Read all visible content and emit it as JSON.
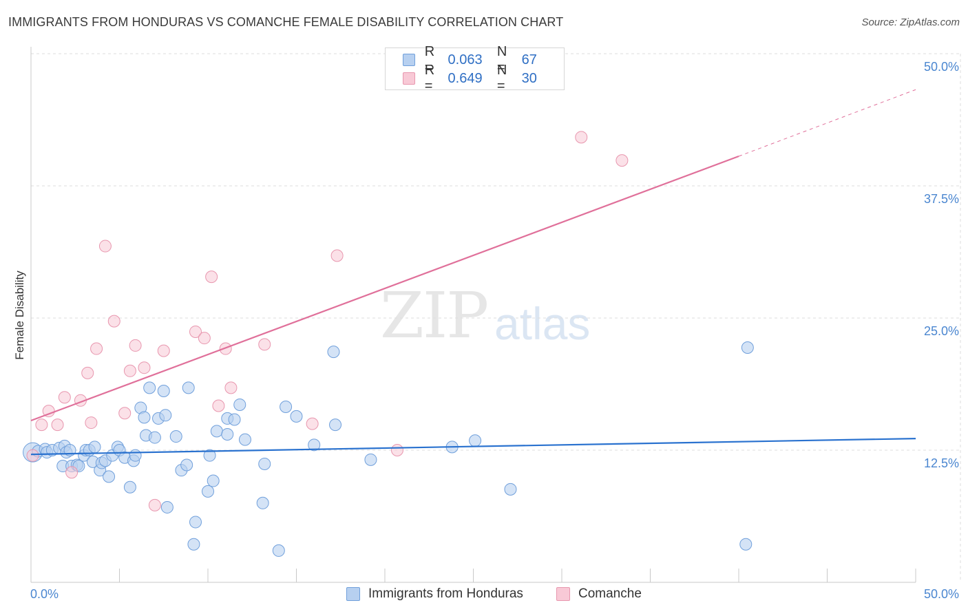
{
  "header": {
    "title": "IMMIGRANTS FROM HONDURAS VS COMANCHE FEMALE DISABILITY CORRELATION CHART",
    "source": "Source: ZipAtlas.com"
  },
  "watermark": {
    "zip": "ZIP",
    "atlas": "atlas"
  },
  "colors": {
    "blue_fill": "#b7d0f0",
    "blue_stroke": "#6f9fdb",
    "blue_line": "#2a72cf",
    "pink_fill": "#f8c9d6",
    "pink_stroke": "#e896ae",
    "pink_line": "#e0709a",
    "tick_text": "#4a86d0",
    "grid": "#dddddd"
  },
  "legend": {
    "series": [
      {
        "r_label": "R =",
        "r_value": "0.063",
        "n_label": "N =",
        "n_value": "67"
      },
      {
        "r_label": "R =",
        "r_value": "0.649",
        "n_label": "N =",
        "n_value": "30"
      }
    ]
  },
  "bottom_legend": {
    "items": [
      "Immigrants from Honduras",
      "Comanche"
    ]
  },
  "chart_data": {
    "type": "scatter",
    "title": "IMMIGRANTS FROM HONDURAS VS COMANCHE FEMALE DISABILITY CORRELATION CHART",
    "xlabel": "",
    "ylabel": "Female Disability",
    "xlim": [
      0,
      50
    ],
    "ylim": [
      0,
      50
    ],
    "y_ticks": [
      12.5,
      25.0,
      37.5,
      50.0
    ],
    "y_tick_labels": [
      "12.5%",
      "25.0%",
      "37.5%",
      "50.0%"
    ],
    "x_tick_labels": [
      "0.0%",
      "50.0%"
    ],
    "grid": true,
    "legend_position": "top-center",
    "series": [
      {
        "name": "Immigrants from Honduras",
        "r": 0.063,
        "n": 67,
        "trend": {
          "x": [
            0,
            50
          ],
          "y": [
            12.1,
            13.6
          ]
        },
        "points": [
          [
            0.1,
            12.3
          ],
          [
            0.4,
            12.4
          ],
          [
            0.8,
            12.6
          ],
          [
            0.9,
            12.3
          ],
          [
            1.2,
            12.5
          ],
          [
            1.6,
            12.7
          ],
          [
            1.8,
            11.0
          ],
          [
            1.9,
            12.9
          ],
          [
            2.0,
            12.3
          ],
          [
            2.2,
            12.5
          ],
          [
            2.3,
            11.0
          ],
          [
            2.6,
            11.1
          ],
          [
            2.7,
            11.0
          ],
          [
            3.0,
            12.0
          ],
          [
            3.1,
            12.5
          ],
          [
            3.3,
            12.5
          ],
          [
            3.5,
            11.4
          ],
          [
            3.6,
            12.8
          ],
          [
            3.9,
            10.6
          ],
          [
            4.0,
            11.3
          ],
          [
            4.2,
            11.5
          ],
          [
            4.4,
            10.0
          ],
          [
            4.6,
            12.0
          ],
          [
            4.9,
            12.8
          ],
          [
            5.0,
            12.5
          ],
          [
            5.3,
            11.8
          ],
          [
            5.6,
            9.0
          ],
          [
            5.8,
            11.5
          ],
          [
            5.9,
            12.0
          ],
          [
            6.2,
            16.5
          ],
          [
            6.4,
            15.6
          ],
          [
            6.5,
            13.9
          ],
          [
            6.7,
            18.4
          ],
          [
            7.0,
            13.7
          ],
          [
            7.2,
            15.5
          ],
          [
            7.5,
            18.1
          ],
          [
            7.6,
            15.8
          ],
          [
            7.7,
            7.1
          ],
          [
            8.2,
            13.8
          ],
          [
            8.5,
            10.6
          ],
          [
            8.8,
            11.1
          ],
          [
            8.9,
            18.4
          ],
          [
            9.2,
            3.6
          ],
          [
            9.3,
            5.7
          ],
          [
            10.0,
            8.6
          ],
          [
            10.1,
            12.0
          ],
          [
            10.3,
            9.6
          ],
          [
            10.5,
            14.3
          ],
          [
            11.1,
            15.5
          ],
          [
            11.1,
            14.0
          ],
          [
            11.5,
            15.4
          ],
          [
            11.8,
            16.8
          ],
          [
            12.1,
            13.5
          ],
          [
            13.2,
            11.2
          ],
          [
            13.1,
            7.5
          ],
          [
            14.0,
            3.0
          ],
          [
            14.4,
            16.6
          ],
          [
            15.0,
            15.7
          ],
          [
            16.0,
            13.0
          ],
          [
            17.1,
            21.8
          ],
          [
            17.2,
            14.9
          ],
          [
            19.2,
            11.6
          ],
          [
            23.8,
            12.8
          ],
          [
            25.1,
            13.4
          ],
          [
            27.1,
            8.8
          ],
          [
            40.5,
            22.2
          ],
          [
            40.4,
            3.6
          ]
        ]
      },
      {
        "name": "Comanche",
        "r": 0.649,
        "n": 30,
        "trend": {
          "x": [
            0,
            40
          ],
          "y": [
            15.3,
            40.3
          ]
        },
        "trend_extension": {
          "x": [
            40,
            50
          ],
          "y": [
            40.3,
            46.6
          ]
        },
        "points": [
          [
            0.1,
            12.0
          ],
          [
            0.6,
            14.9
          ],
          [
            1.0,
            16.2
          ],
          [
            1.5,
            14.9
          ],
          [
            1.9,
            17.5
          ],
          [
            2.3,
            10.4
          ],
          [
            2.8,
            17.2
          ],
          [
            3.2,
            19.8
          ],
          [
            3.4,
            15.1
          ],
          [
            3.7,
            22.1
          ],
          [
            4.2,
            31.8
          ],
          [
            4.7,
            24.7
          ],
          [
            5.3,
            16.0
          ],
          [
            5.6,
            20.0
          ],
          [
            5.9,
            22.4
          ],
          [
            6.4,
            20.3
          ],
          [
            7.0,
            7.3
          ],
          [
            7.5,
            21.9
          ],
          [
            9.3,
            23.7
          ],
          [
            9.8,
            23.1
          ],
          [
            10.2,
            28.9
          ],
          [
            10.6,
            16.7
          ],
          [
            11.0,
            22.1
          ],
          [
            11.3,
            18.4
          ],
          [
            13.2,
            22.5
          ],
          [
            15.9,
            15.0
          ],
          [
            17.3,
            30.9
          ],
          [
            20.7,
            12.5
          ],
          [
            31.1,
            42.1
          ],
          [
            33.4,
            39.9
          ]
        ]
      }
    ]
  }
}
